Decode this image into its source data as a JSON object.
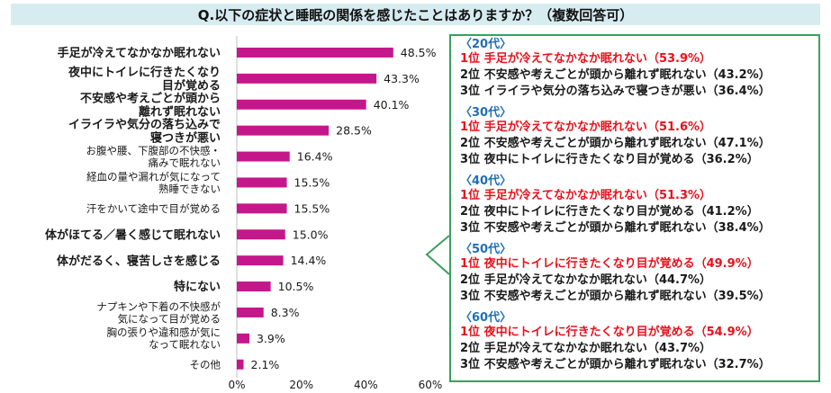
{
  "title": "Q.以下の症状と睡眠の関係を感じたことはありますか？（複数回答可）",
  "chart_data": {
    "type": "bar",
    "orientation": "horizontal",
    "categories": [
      [
        "手足が冷えてなかなか眠れない"
      ],
      [
        "夜中にトイレに行きたくなり",
        "目が覚める"
      ],
      [
        "不安感や考えごとが頭から",
        "離れず眠れない"
      ],
      [
        "イライラや気分の落ち込みで",
        "寝つきが悪い"
      ],
      [
        "お腹や腰、下腹部の不快感・",
        "痛みで眠れない"
      ],
      [
        "経血の量や漏れが気になって",
        "熟睡できない"
      ],
      [
        "汗をかいて途中で目が覚める"
      ],
      [
        "体がほてる／暑く感じて眠れない"
      ],
      [
        "体がだるく、寝苦しさを感じる"
      ],
      [
        "特にない"
      ],
      [
        "ナプキンや下着の不快感が",
        "気になって目が覚める"
      ],
      [
        "胸の張りや違和感が気に",
        "なって眠れない"
      ],
      [
        "その他"
      ]
    ],
    "values": [
      48.5,
      43.3,
      40.1,
      28.5,
      16.4,
      15.5,
      15.5,
      15.0,
      14.4,
      10.5,
      8.3,
      3.9,
      2.1
    ],
    "value_labels": [
      "48.5%",
      "43.3%",
      "40.1%",
      "28.5%",
      "16.4%",
      "15.5%",
      "15.5%",
      "15.0%",
      "14.4%",
      "10.5%",
      "8.3%",
      "3.9%",
      "2.1%"
    ],
    "xlim": [
      0,
      60
    ],
    "xticks": [
      "0%",
      "20%",
      "40%",
      "60%"
    ],
    "grid": false
  },
  "colors": {
    "bar": "#c5178c",
    "title_bg": "#d7ecf1",
    "panel_border": "#3aa05c",
    "group_title": "#1f6fb8",
    "highlight": "#e8111b"
  },
  "age_groups": [
    {
      "title": "〈20代〉",
      "ranks": [
        {
          "rank": "1位",
          "label": "手足が冷えてなかなか眠れない",
          "value": "（53.9%）"
        },
        {
          "rank": "2位",
          "label": "不安感や考えごとが頭から離れず眠れない",
          "value": "（43.2%）"
        },
        {
          "rank": "3位",
          "label": "イライラや気分の落ち込みで寝つきが悪い",
          "value": "（36.4%）"
        }
      ]
    },
    {
      "title": "〈30代〉",
      "ranks": [
        {
          "rank": "1位",
          "label": "手足が冷えてなかなか眠れない",
          "value": "（51.6%）"
        },
        {
          "rank": "2位",
          "label": "不安感や考えごとが頭から離れず眠れない",
          "value": "（47.1%）"
        },
        {
          "rank": "3位",
          "label": "夜中にトイレに行きたくなり目が覚める",
          "value": "（36.2%）"
        }
      ]
    },
    {
      "title": "〈40代〉",
      "ranks": [
        {
          "rank": "1位",
          "label": "手足が冷えてなかなか眠れない",
          "value": "（51.3%）"
        },
        {
          "rank": "2位",
          "label": "夜中にトイレに行きたくなり目が覚める",
          "value": "（41.2%）"
        },
        {
          "rank": "3位",
          "label": "不安感や考えごとが頭から離れず眠れない",
          "value": "（38.4%）"
        }
      ]
    },
    {
      "title": "〈50代〉",
      "ranks": [
        {
          "rank": "1位",
          "label": "夜中にトイレに行きたくなり目が覚める",
          "value": "（49.9%）"
        },
        {
          "rank": "2位",
          "label": "手足が冷えてなかなか眠れない",
          "value": "（44.7%）"
        },
        {
          "rank": "3位",
          "label": "不安感や考えごとが頭から離れず眠れない",
          "value": "（39.5%）"
        }
      ]
    },
    {
      "title": "〈60代〉",
      "ranks": [
        {
          "rank": "1位",
          "label": "夜中にトイレに行きたくなり目が覚める",
          "value": "（54.9%）"
        },
        {
          "rank": "2位",
          "label": "手足が冷えてなかなか眠れない",
          "value": "（43.7%）"
        },
        {
          "rank": "3位",
          "label": "不安感や考えごとが頭から離れず眠れない",
          "value": "（32.7%）"
        }
      ]
    }
  ]
}
